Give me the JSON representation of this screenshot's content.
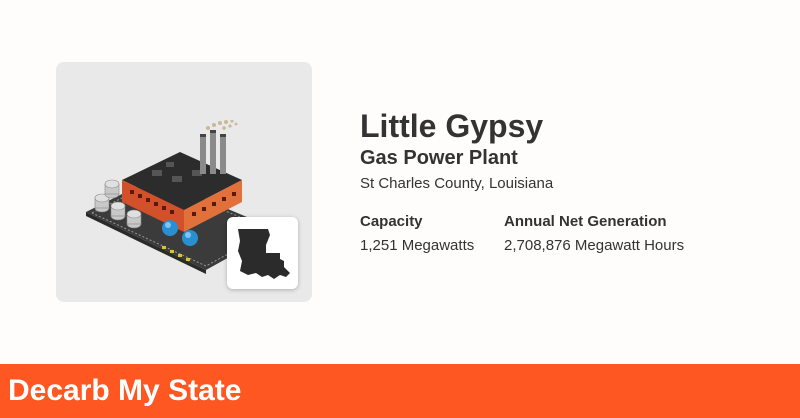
{
  "plant": {
    "name": "Little Gypsy",
    "type": "Gas Power Plant",
    "location": "St Charles County, Louisiana"
  },
  "stats": {
    "capacity_label": "Capacity",
    "capacity_value": "1,251 Megawatts",
    "generation_label": "Annual Net Generation",
    "generation_value": "2,708,876 Megawatt Hours"
  },
  "icons": {
    "plant_illustration": "gas-power-plant-icon",
    "state_shape": "louisiana-state-icon"
  },
  "footer": {
    "brand": "Decarb My State"
  },
  "colors": {
    "accent": "#fe5722",
    "card_background": "#e9e9e9",
    "text": "#333333"
  }
}
